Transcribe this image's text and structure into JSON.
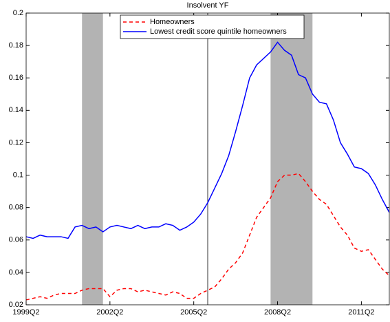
{
  "chart_data": {
    "type": "line",
    "title": "Insolvent YF",
    "categories": [
      "1999Q2",
      null,
      null,
      null,
      null,
      null,
      null,
      null,
      null,
      null,
      null,
      null,
      "2002Q2",
      null,
      null,
      null,
      null,
      null,
      null,
      null,
      null,
      null,
      null,
      null,
      "2005Q2",
      null,
      null,
      null,
      null,
      null,
      null,
      null,
      null,
      null,
      null,
      null,
      "2008Q2",
      null,
      null,
      null,
      null,
      null,
      null,
      null,
      null,
      null,
      null,
      null,
      "2011Q2",
      null,
      null,
      null,
      null
    ],
    "series": [
      {
        "name": "Homeowners",
        "color": "#ff0000",
        "dash": true,
        "values": [
          0.023,
          0.024,
          0.025,
          0.024,
          0.026,
          0.027,
          0.027,
          0.027,
          0.029,
          0.03,
          0.03,
          0.03,
          0.025,
          0.029,
          0.03,
          0.03,
          0.028,
          0.029,
          0.028,
          0.027,
          0.026,
          0.028,
          0.027,
          0.024,
          0.024,
          0.027,
          0.029,
          0.031,
          0.036,
          0.042,
          0.046,
          0.052,
          0.063,
          0.074,
          0.08,
          0.086,
          0.096,
          0.1,
          0.1,
          0.101,
          0.096,
          0.09,
          0.085,
          0.082,
          0.075,
          0.068,
          0.063,
          0.055,
          0.053,
          0.054,
          0.048,
          0.042,
          0.038
        ]
      },
      {
        "name": "Lowest credit score quintile homeowners",
        "color": "#0000ff",
        "dash": false,
        "values": [
          0.062,
          0.061,
          0.063,
          0.062,
          0.062,
          0.062,
          0.061,
          0.068,
          0.069,
          0.067,
          0.068,
          0.065,
          0.068,
          0.069,
          0.068,
          0.067,
          0.069,
          0.067,
          0.068,
          0.068,
          0.07,
          0.069,
          0.066,
          0.068,
          0.071,
          0.076,
          0.083,
          0.092,
          0.101,
          0.112,
          0.127,
          0.143,
          0.16,
          0.168,
          0.172,
          0.176,
          0.182,
          0.177,
          0.174,
          0.162,
          0.16,
          0.15,
          0.145,
          0.144,
          0.134,
          0.12,
          0.113,
          0.105,
          0.104,
          0.101,
          0.094,
          0.085,
          0.077
        ]
      }
    ],
    "shaded": [
      [
        8,
        11
      ],
      [
        35,
        41
      ]
    ],
    "shade_color": "#b3b3b3",
    "vline": 26,
    "ylim": [
      0.02,
      0.2
    ],
    "yticks": [
      0.02,
      0.04,
      0.06,
      0.08,
      0.1,
      0.12,
      0.14,
      0.16,
      0.18,
      0.2
    ],
    "legend": "top"
  }
}
